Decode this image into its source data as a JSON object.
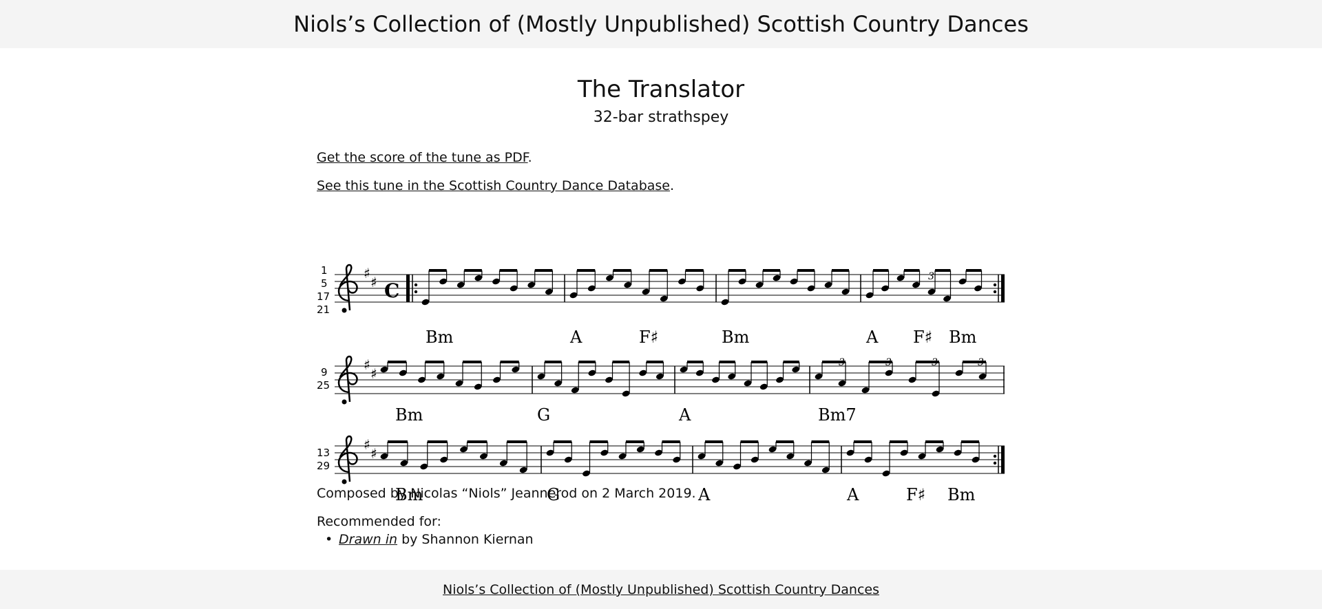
{
  "header": {
    "site_title": "Niols’s Collection of (Mostly Unpublished) Scottish Country Dances"
  },
  "tune": {
    "title": "The Translator",
    "subtitle": "32-bar strathspey"
  },
  "links": {
    "pdf_link": "Get the score of the tune as PDF",
    "pdf_suffix": ".",
    "sccd_link": "See this tune in the Scottish Country Dance Database",
    "sccd_suffix": "."
  },
  "score": {
    "systems": [
      {
        "bar_numbers": [
          "1",
          "5",
          "17",
          "21"
        ],
        "chords": [
          "Bm",
          "A",
          "F♯",
          "Bm",
          "A",
          "F♯",
          "Bm"
        ]
      },
      {
        "bar_numbers": [
          "9",
          "25"
        ],
        "chords": [
          "Bm",
          "G",
          "A",
          "Bm7"
        ]
      },
      {
        "bar_numbers": [
          "13",
          "29"
        ],
        "chords": [
          "Bm",
          "G",
          "A",
          "A",
          "F♯",
          "Bm"
        ]
      }
    ],
    "triplet_mark": "3"
  },
  "composed": "Composed by Nicolas “Niols” Jeannerod on 2 March 2019.",
  "recommended": {
    "label": "Recommended for:",
    "items": [
      {
        "dance": "Drawn in",
        "by": " by Shannon Kiernan"
      }
    ]
  },
  "footer": {
    "link": "Niols’s Collection of (Mostly Unpublished) Scottish Country Dances"
  }
}
